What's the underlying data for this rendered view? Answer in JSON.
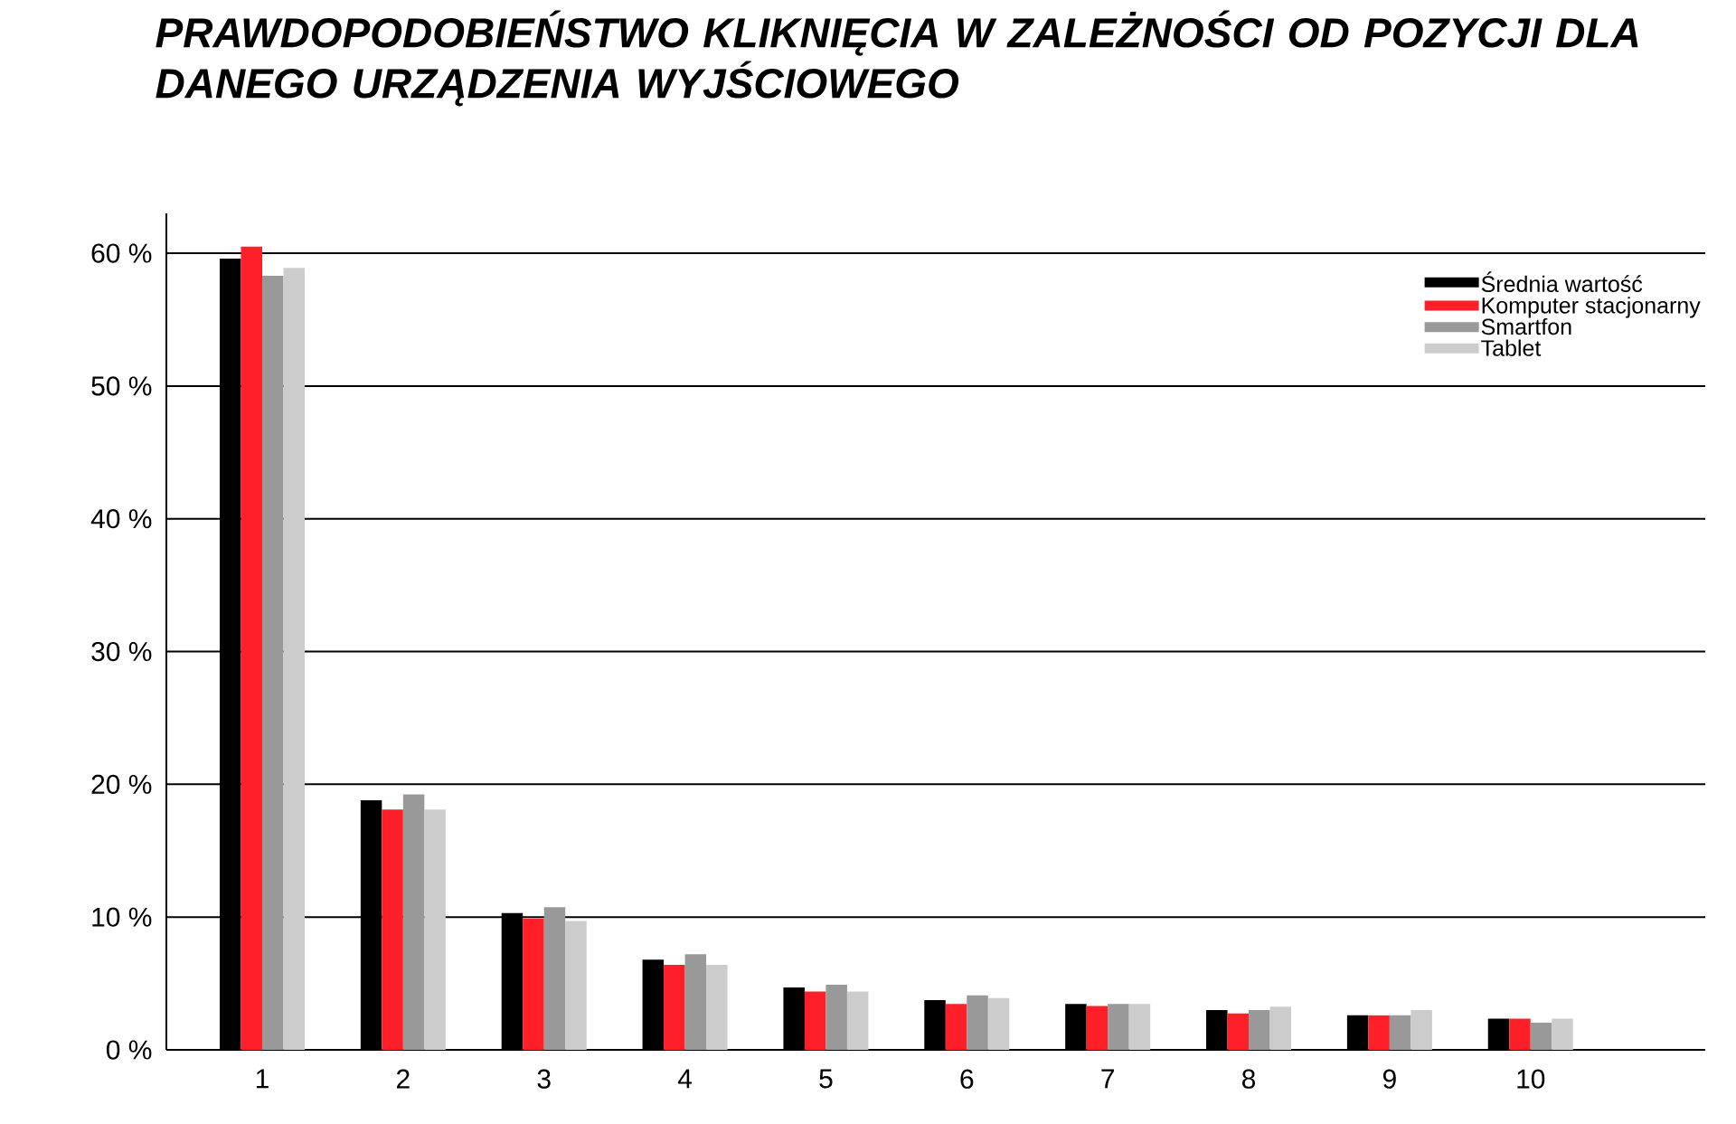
{
  "chart_data": {
    "type": "bar",
    "title": "PRAWDOPODOBIEŃSTWO KLIKNIĘCIA W ZALEŻNOŚCI OD POZYCJI DLA DANEGO URZĄDZENIA WYJŚCIOWEGO",
    "categories": [
      "1",
      "2",
      "3",
      "4",
      "5",
      "6",
      "7",
      "8",
      "9",
      "10"
    ],
    "series": [
      {
        "name": "Średnia wartość",
        "color": "#000000",
        "values": [
          59.6,
          18.8,
          10.3,
          6.8,
          4.7,
          3.75,
          3.45,
          3.0,
          2.6,
          2.35
        ]
      },
      {
        "name": "Komputer stacjonarny",
        "color": "#ff1f29",
        "values": [
          60.5,
          18.1,
          9.9,
          6.4,
          4.4,
          3.45,
          3.3,
          2.75,
          2.6,
          2.35
        ]
      },
      {
        "name": "Smartfon",
        "color": "#999999",
        "values": [
          58.3,
          19.25,
          10.75,
          7.2,
          4.9,
          4.1,
          3.45,
          3.0,
          2.6,
          2.05
        ]
      },
      {
        "name": "Tablet",
        "color": "#cccccc",
        "values": [
          58.9,
          18.1,
          9.7,
          6.4,
          4.4,
          3.9,
          3.45,
          3.25,
          3.0,
          2.35
        ]
      }
    ],
    "ylim": [
      0,
      63
    ],
    "yticks": [
      {
        "value": 0,
        "label": "0 %"
      },
      {
        "value": 10,
        "label": "10 %"
      },
      {
        "value": 20,
        "label": "20 %"
      },
      {
        "value": 30,
        "label": "30 %"
      },
      {
        "value": 40,
        "label": "40 %"
      },
      {
        "value": 50,
        "label": "50 %"
      },
      {
        "value": 60,
        "label": "60 %"
      }
    ],
    "grid": "y",
    "legend": "top right"
  }
}
